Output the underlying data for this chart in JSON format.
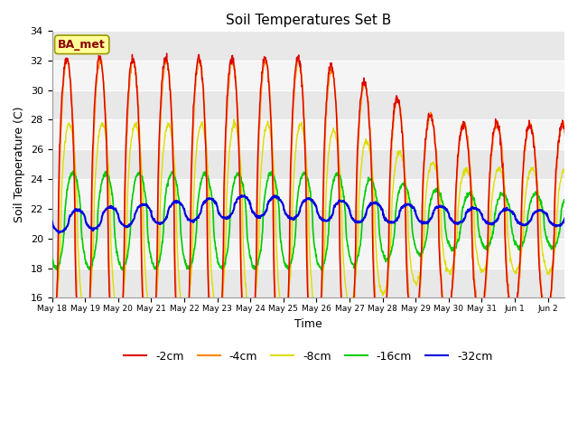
{
  "title": "Soil Temperatures Set B",
  "xlabel": "Time",
  "ylabel": "Soil Temperature (C)",
  "ylim": [
    16,
    34
  ],
  "yticks": [
    16,
    18,
    20,
    22,
    24,
    26,
    28,
    30,
    32,
    34
  ],
  "annotation": "BA_met",
  "colors": {
    "-2cm": "#dd0000",
    "-4cm": "#ff8800",
    "-8cm": "#dddd00",
    "-16cm": "#00cc00",
    "-32cm": "#0000dd"
  },
  "legend_labels": [
    "-2cm",
    "-4cm",
    "-8cm",
    "-16cm",
    "-32cm"
  ],
  "band_colors": [
    "#f0f0f0",
    "#e0e0e0"
  ]
}
